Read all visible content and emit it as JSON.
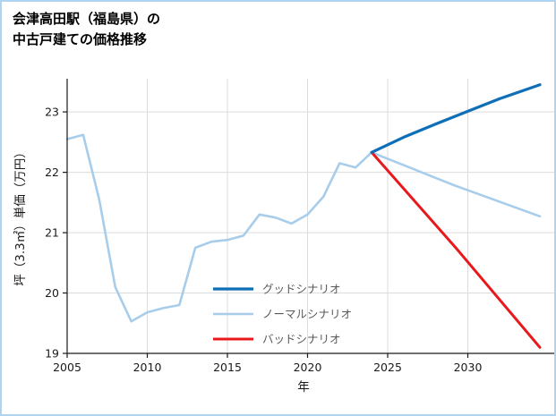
{
  "page": {
    "border_color": "#aed4f2",
    "background": "#ffffff"
  },
  "title": {
    "line1": "会津高田駅（福島県）の",
    "line2": "中古戸建ての価格推移"
  },
  "chart_data": {
    "type": "line",
    "title": "会津高田駅（福島県）の中古戸建ての価格推移",
    "xlabel": "年",
    "ylabel": "坪（3.3㎡）単価（万円）",
    "xlim": [
      2005,
      2034.5
    ],
    "ylim": [
      19,
      23.55
    ],
    "xticks": [
      2005,
      2010,
      2015,
      2020,
      2025,
      2030
    ],
    "yticks": [
      19,
      20,
      21,
      22,
      23
    ],
    "grid": true,
    "legend_position": "inside-lower-center",
    "axis_color": "#1a1a1a",
    "grid_color": "#dcdcdc",
    "tick_label_color": "#1a1a1a",
    "legend_text_color": "#595959",
    "series": [
      {
        "name": "グッドシナリオ",
        "color": "#0e6eb8",
        "width": 3.2,
        "x": [
          2024,
          2026,
          2028,
          2030,
          2032,
          2034.5
        ],
        "y": [
          22.33,
          22.58,
          22.8,
          23.01,
          23.22,
          23.45
        ]
      },
      {
        "name": "ノーマルシナリオ",
        "color": "#a8cdea",
        "width": 2.6,
        "x": [
          2005,
          2006,
          2007,
          2008,
          2009,
          2010,
          2011,
          2012,
          2013,
          2014,
          2015,
          2016,
          2017,
          2018,
          2019,
          2020,
          2021,
          2022,
          2023,
          2024,
          2029,
          2034.5
        ],
        "y": [
          22.55,
          22.62,
          21.55,
          20.1,
          19.53,
          19.68,
          19.75,
          19.8,
          20.75,
          20.85,
          20.88,
          20.95,
          21.3,
          21.25,
          21.15,
          21.3,
          21.6,
          22.15,
          22.08,
          22.33,
          21.8,
          21.27
        ]
      },
      {
        "name": "バッドシナリオ",
        "color": "#e8191c",
        "width": 3.0,
        "x": [
          2024,
          2029.25,
          2034.5
        ],
        "y": [
          22.33,
          20.75,
          19.1
        ]
      }
    ]
  }
}
